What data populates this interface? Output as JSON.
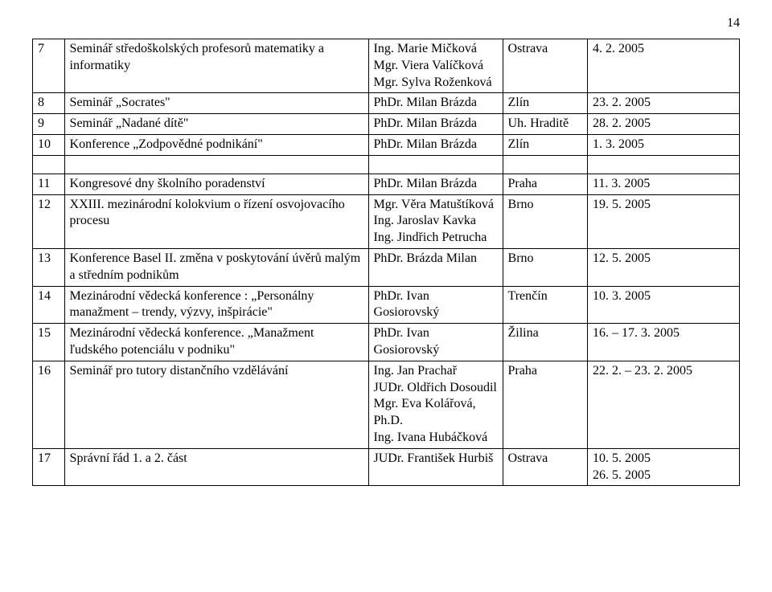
{
  "page_number": "14",
  "rows": [
    {
      "n": "7",
      "title": "Seminář středoškolských profesorů matematiky a informatiky",
      "person": "Ing. Marie Mičková\nMgr. Viera Valíčková\nMgr. Sylva Roženková",
      "place": "Ostrava",
      "date": "4. 2. 2005"
    },
    {
      "n": "8",
      "title": "Seminář „Socrates\"",
      "person": "PhDr. Milan Brázda",
      "place": "Zlín",
      "date": "23. 2. 2005"
    },
    {
      "n": "9",
      "title": "Seminář „Nadané dítě\"",
      "person": "PhDr. Milan Brázda",
      "place": "Uh. Hraditě",
      "date": "28. 2. 2005"
    },
    {
      "n": "10",
      "title": "Konference „Zodpovědné podnikání\"",
      "person": "PhDr. Milan Brázda",
      "place": "Zlín",
      "date": "1. 3. 2005"
    },
    {
      "n": "11",
      "title": "Kongresové dny školního poradenství",
      "person": "PhDr. Milan Brázda",
      "place": "Praha",
      "date": "11. 3. 2005"
    },
    {
      "n": "12",
      "title": "XXIII. mezinárodní kolokvium o řízení osvojovacího procesu",
      "person": "Mgr. Věra Matuštíková\nIng. Jaroslav Kavka\nIng. Jindřich Petrucha",
      "place": "Brno",
      "date": "19. 5. 2005"
    },
    {
      "n": "13",
      "title": "Konference Basel II.  změna v poskytování úvěrů malým a středním podnikům",
      "person": "PhDr. Brázda Milan",
      "place": "Brno",
      "date": "12. 5. 2005"
    },
    {
      "n": "14",
      "title": "Mezinárodní vědecká konference : „Personálny manažment – trendy, výzvy, inšpirácie\"",
      "person": "PhDr. Ivan Gosiorovský",
      "place": "Trenčín",
      "date": "10. 3. 2005"
    },
    {
      "n": "15",
      "title": "Mezinárodní vědecká konference. „Manažment ľudského potenciálu v podniku\"",
      "person": "PhDr. Ivan Gosiorovský",
      "place": "Žilina",
      "date": "16. – 17. 3. 2005"
    },
    {
      "n": "16",
      "title": "Seminář pro tutory distančního vzdělávání",
      "person": "Ing. Jan Prachař\nJUDr. Oldřich Dosoudil\nMgr. Eva Kolářová, Ph.D.\nIng. Ivana Hubáčková",
      "place": "Praha",
      "date": "22. 2. – 23. 2. 2005"
    },
    {
      "n": "17",
      "title": "Správní řád 1. a 2. část",
      "person": "JUDr. František Hurbiš",
      "place": "Ostrava",
      "date": "10. 5. 2005\n26. 5. 2005"
    }
  ]
}
